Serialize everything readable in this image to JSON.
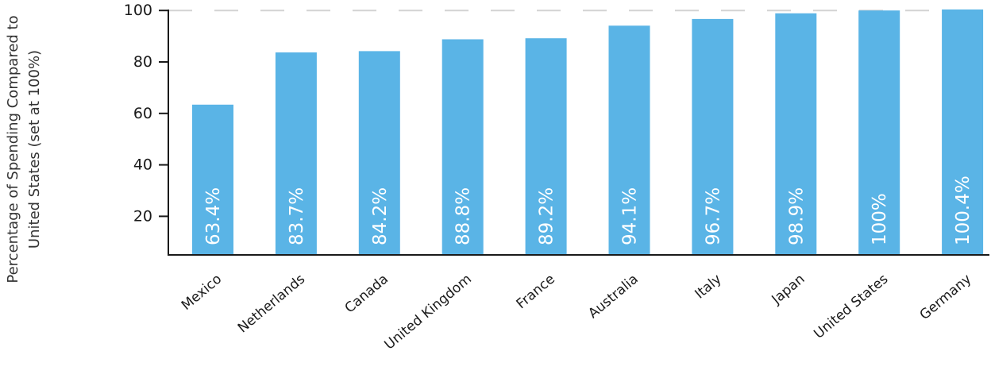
{
  "chart_data": {
    "type": "bar",
    "title": "",
    "xlabel": "",
    "ylabel_lines": [
      "Percentage of Spending Compared to",
      "United States (set at 100%)"
    ],
    "categories": [
      "Mexico",
      "Netherlands",
      "Canada",
      "United Kingdom",
      "France",
      "Australia",
      "Italy",
      "Japan",
      "United States",
      "Germany"
    ],
    "values": [
      63.4,
      83.7,
      84.2,
      88.8,
      89.2,
      94.1,
      96.7,
      98.9,
      100,
      100.4
    ],
    "data_labels": [
      "63.4%",
      "83.7%",
      "84.2%",
      "88.8%",
      "89.2%",
      "94.1%",
      "96.7%",
      "98.9%",
      "100%",
      "100.4%"
    ],
    "yticks": [
      "20",
      "40",
      "60",
      "80",
      "100"
    ],
    "ylim": [
      5,
      100
    ],
    "reference_line": 100,
    "grid": false,
    "colors": {
      "bar": "#5ab4e6",
      "axis": "#1a1a1a",
      "reference": "#d3d3d3"
    }
  }
}
